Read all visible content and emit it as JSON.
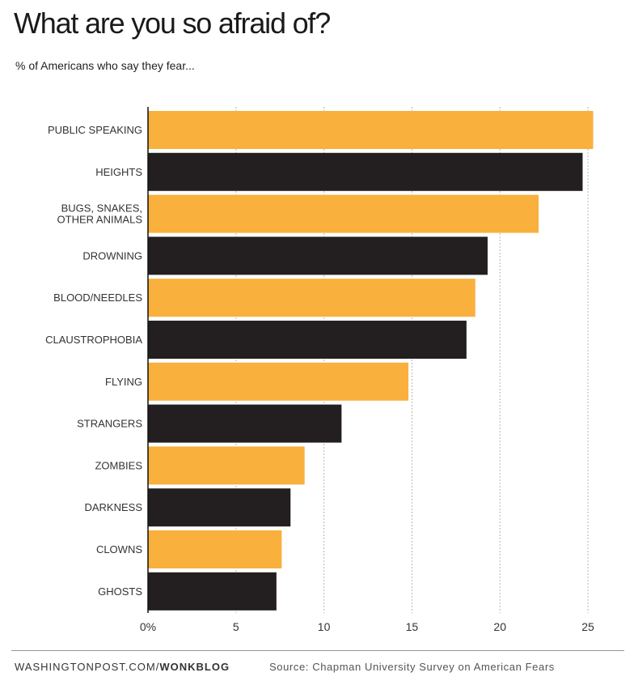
{
  "chart_data": {
    "type": "bar",
    "orientation": "horizontal",
    "title": "What are you so afraid of?",
    "subtitle": "% of Americans who say they fear...",
    "categories": [
      "PUBLIC SPEAKING",
      "HEIGHTS",
      "BUGS, SNAKES,\nOTHER ANIMALS",
      "DROWNING",
      "BLOOD/NEEDLES",
      "CLAUSTROPHOBIA",
      "FLYING",
      "STRANGERS",
      "ZOMBIES",
      "DARKNESS",
      "CLOWNS",
      "GHOSTS"
    ],
    "values": [
      25.3,
      24.7,
      22.2,
      19.3,
      18.6,
      18.1,
      14.8,
      11.0,
      8.9,
      8.1,
      7.6,
      7.3
    ],
    "xlim": [
      0,
      25
    ],
    "x_ticks": [
      "0%",
      "5",
      "10",
      "15",
      "20",
      "25"
    ],
    "grid": true,
    "colors": {
      "orange": "#f9b03c",
      "dark": "#231f20"
    },
    "bar_colors": [
      "orange",
      "dark",
      "orange",
      "dark",
      "orange",
      "dark",
      "orange",
      "dark",
      "orange",
      "dark",
      "orange",
      "dark"
    ]
  },
  "footer": {
    "credit_site": "WASHINGTONPOST.COM/",
    "credit_brand": "WONKBLOG",
    "source": "Source: Chapman University Survey on American Fears"
  }
}
